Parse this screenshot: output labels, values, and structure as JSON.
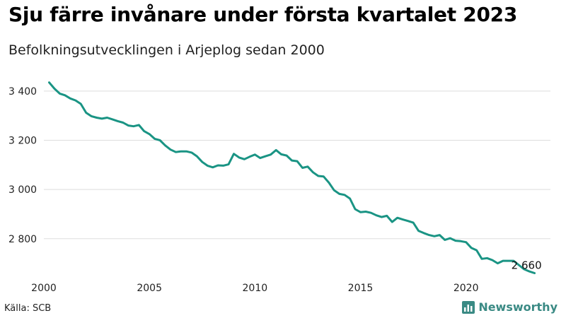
{
  "header": {
    "title": "Sju färre invånare under första kvartalet 2023",
    "subtitle": "Befolkningsutvecklingen i Arjeplog sedan 2000"
  },
  "footer": {
    "source": "Källa: SCB",
    "brand": "Newsworthy",
    "brand_icon": "bar-chart-logo-icon"
  },
  "colors": {
    "line": "#1a9484",
    "grid": "#dddddd",
    "brand": "#3a8a84"
  },
  "chart_data": {
    "type": "line",
    "title": "Sju färre invånare under första kvartalet 2023",
    "subtitle": "Befolkningsutvecklingen i Arjeplog sedan 2000",
    "xlabel": "",
    "ylabel": "",
    "xlim": [
      2000,
      2024
    ],
    "ylim": [
      2650,
      3460
    ],
    "grid": true,
    "x_ticks": [
      2000,
      2005,
      2010,
      2015,
      2020
    ],
    "x_tick_labels": [
      "2000",
      "2005",
      "2010",
      "2015",
      "2020"
    ],
    "y_ticks": [
      2800,
      3000,
      3200,
      3400
    ],
    "y_tick_labels": [
      "2 800",
      "3 000",
      "3 200",
      "3 400"
    ],
    "end_label": "2 660",
    "x": [
      2000.25,
      2000.5,
      2000.75,
      2001.0,
      2001.25,
      2001.5,
      2001.75,
      2002.0,
      2002.25,
      2002.5,
      2002.75,
      2003.0,
      2003.25,
      2003.5,
      2003.75,
      2004.0,
      2004.25,
      2004.5,
      2004.75,
      2005.0,
      2005.25,
      2005.5,
      2005.75,
      2006.0,
      2006.25,
      2006.5,
      2006.75,
      2007.0,
      2007.25,
      2007.5,
      2007.75,
      2008.0,
      2008.25,
      2008.5,
      2008.75,
      2009.0,
      2009.25,
      2009.5,
      2009.75,
      2010.0,
      2010.25,
      2010.5,
      2010.75,
      2011.0,
      2011.25,
      2011.5,
      2011.75,
      2012.0,
      2012.25,
      2012.5,
      2012.75,
      2013.0,
      2013.25,
      2013.5,
      2013.75,
      2014.0,
      2014.25,
      2014.5,
      2014.75,
      2015.0,
      2015.25,
      2015.5,
      2015.75,
      2016.0,
      2016.25,
      2016.5,
      2016.75,
      2017.0,
      2017.25,
      2017.5,
      2017.75,
      2018.0,
      2018.25,
      2018.5,
      2018.75,
      2019.0,
      2019.25,
      2019.5,
      2019.75,
      2020.0,
      2020.25,
      2020.5,
      2020.75,
      2021.0,
      2021.25,
      2021.5,
      2021.75,
      2022.0,
      2022.25,
      2022.5,
      2022.75,
      2023.0,
      2023.25
    ],
    "values": [
      3435,
      3410,
      3390,
      3383,
      3370,
      3362,
      3348,
      3312,
      3298,
      3292,
      3288,
      3292,
      3285,
      3278,
      3272,
      3260,
      3257,
      3262,
      3237,
      3225,
      3206,
      3200,
      3179,
      3162,
      3152,
      3155,
      3155,
      3150,
      3135,
      3112,
      3097,
      3090,
      3098,
      3097,
      3102,
      3145,
      3130,
      3123,
      3133,
      3142,
      3128,
      3135,
      3142,
      3160,
      3143,
      3138,
      3118,
      3115,
      3088,
      3093,
      3070,
      3055,
      3053,
      3028,
      2997,
      2982,
      2978,
      2963,
      2920,
      2908,
      2910,
      2905,
      2895,
      2888,
      2893,
      2868,
      2885,
      2878,
      2872,
      2865,
      2832,
      2823,
      2815,
      2810,
      2815,
      2795,
      2802,
      2792,
      2790,
      2786,
      2763,
      2753,
      2718,
      2721,
      2713,
      2700,
      2710,
      2710,
      2710,
      2693,
      2676,
      2667,
      2660
    ]
  }
}
